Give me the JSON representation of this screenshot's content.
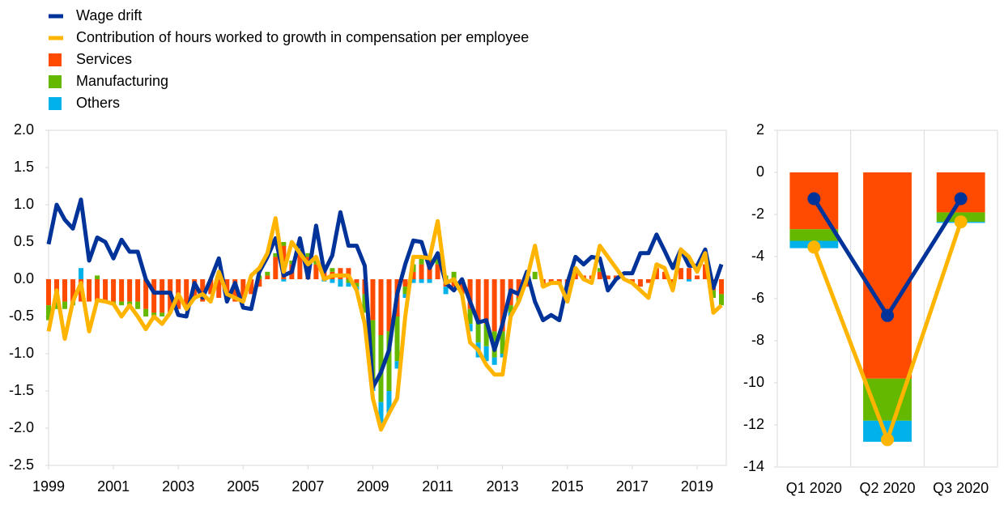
{
  "chart_data": [
    {
      "type": "combo",
      "x": [
        1999,
        1999.25,
        1999.5,
        1999.75,
        2000,
        2000.25,
        2000.5,
        2000.75,
        2001,
        2001.25,
        2001.5,
        2001.75,
        2002,
        2002.25,
        2002.5,
        2002.75,
        2003,
        2003.25,
        2003.5,
        2003.75,
        2004,
        2004.25,
        2004.5,
        2004.75,
        2005,
        2005.25,
        2005.5,
        2005.75,
        2006,
        2006.25,
        2006.5,
        2006.75,
        2007,
        2007.25,
        2007.5,
        2007.75,
        2008,
        2008.25,
        2008.5,
        2008.75,
        2009,
        2009.25,
        2009.5,
        2009.75,
        2010,
        2010.25,
        2010.5,
        2010.75,
        2011,
        2011.25,
        2011.5,
        2011.75,
        2012,
        2012.25,
        2012.5,
        2012.75,
        2013,
        2013.25,
        2013.5,
        2013.75,
        2014,
        2014.25,
        2014.5,
        2014.75,
        2015,
        2015.25,
        2015.5,
        2015.75,
        2016,
        2016.25,
        2016.5,
        2016.75,
        2017,
        2017.25,
        2017.5,
        2017.75,
        2018,
        2018.25,
        2018.5,
        2018.75,
        2019,
        2019.25,
        2019.5,
        2019.75
      ],
      "xlim": [
        1999,
        2019.9
      ],
      "xticks": [
        1999,
        2001,
        2003,
        2005,
        2007,
        2009,
        2011,
        2013,
        2015,
        2017,
        2019
      ],
      "ylim": [
        -2.5,
        2.0
      ],
      "yticks": [
        {
          "value": 2.0,
          "label": "2.0"
        },
        {
          "value": 1.5,
          "label": "1.5"
        },
        {
          "value": 1.0,
          "label": "1.0"
        },
        {
          "value": 0.5,
          "label": "0.5"
        },
        {
          "value": 0,
          "label": "0.0"
        },
        {
          "value": -0.5,
          "label": "-0.5"
        },
        {
          "value": -1.0,
          "label": "-1.0"
        },
        {
          "value": -1.5,
          "label": "-1.5"
        },
        {
          "value": -2.0,
          "label": "-2.0"
        },
        {
          "value": -2.5,
          "label": "-2.5"
        }
      ],
      "series": [
        {
          "name": "Wage drift",
          "kind": "line",
          "color": "#003399",
          "values": [
            0.47,
            1.0,
            0.8,
            0.68,
            1.07,
            0.25,
            0.56,
            0.5,
            0.28,
            0.53,
            0.37,
            0.37,
            0.0,
            -0.18,
            -0.18,
            -0.18,
            -0.48,
            -0.5,
            -0.05,
            -0.25,
            0.0,
            0.28,
            -0.3,
            -0.05,
            -0.38,
            -0.4,
            0.1,
            0.3,
            0.55,
            0.05,
            0.1,
            0.55,
            0.02,
            0.72,
            0.1,
            0.32,
            0.9,
            0.45,
            0.45,
            0.18,
            -1.45,
            -1.25,
            -0.95,
            -0.2,
            0.2,
            0.52,
            0.5,
            0.15,
            0.35,
            -0.05,
            -0.15,
            0.0,
            -0.3,
            -0.58,
            -0.55,
            -0.95,
            -0.6,
            -0.15,
            -0.2,
            0.1,
            -0.3,
            -0.55,
            -0.48,
            -0.55,
            -0.05,
            0.3,
            0.2,
            0.3,
            0.28,
            -0.15,
            0.0,
            0.08,
            0.08,
            0.35,
            0.35,
            0.6,
            0.38,
            0.15,
            0.4,
            0.18,
            0.18,
            0.4,
            -0.12,
            0.2
          ]
        },
        {
          "name": "Contribution of hours worked to growth in compensation per employee",
          "kind": "line",
          "color": "#ffb400",
          "values": [
            -0.7,
            -0.15,
            -0.8,
            -0.3,
            -0.05,
            -0.7,
            -0.28,
            -0.3,
            -0.33,
            -0.5,
            -0.35,
            -0.5,
            -0.67,
            -0.5,
            -0.6,
            -0.45,
            -0.2,
            -0.4,
            -0.25,
            -0.2,
            -0.3,
            0.1,
            -0.2,
            -0.25,
            -0.3,
            0.05,
            0.15,
            0.35,
            0.82,
            0.1,
            0.5,
            0.35,
            0.2,
            0.3,
            0.0,
            0.05,
            0.05,
            0.05,
            -0.15,
            -0.6,
            -1.6,
            -2.02,
            -1.8,
            -1.6,
            -0.5,
            0.3,
            0.3,
            0.28,
            0.78,
            -0.05,
            0.0,
            -0.2,
            -0.85,
            -0.95,
            -1.15,
            -1.28,
            -1.28,
            -0.5,
            -0.3,
            0.0,
            0.45,
            -0.1,
            -0.05,
            -0.05,
            -0.3,
            0.15,
            0.0,
            -0.05,
            0.45,
            0.3,
            0.15,
            0.0,
            -0.05,
            -0.15,
            -0.25,
            0.2,
            0.15,
            -0.15,
            0.4,
            0.3,
            0.1,
            0.35,
            -0.45,
            -0.35
          ]
        },
        {
          "name": "Services",
          "kind": "bar",
          "color": "#ff4b00",
          "values": [
            -0.35,
            -0.3,
            -0.3,
            -0.3,
            -0.3,
            -0.3,
            -0.3,
            -0.3,
            -0.3,
            -0.3,
            -0.3,
            -0.3,
            -0.4,
            -0.45,
            -0.45,
            -0.45,
            -0.4,
            -0.35,
            -0.25,
            -0.3,
            -0.2,
            -0.25,
            -0.25,
            -0.3,
            -0.3,
            -0.2,
            -0.1,
            0.05,
            0.3,
            0.45,
            0.2,
            0.35,
            0.3,
            0.2,
            0.15,
            0.1,
            0.15,
            0.15,
            -0.05,
            -0.2,
            -0.55,
            -0.75,
            -0.7,
            -0.5,
            -0.1,
            0.1,
            0.2,
            0.25,
            0.2,
            -0.1,
            -0.1,
            -0.2,
            -0.4,
            -0.55,
            -0.6,
            -0.7,
            -0.7,
            -0.35,
            -0.25,
            -0.1,
            0.0,
            -0.1,
            -0.05,
            -0.05,
            -0.1,
            0.1,
            0.05,
            0.05,
            0.1,
            0.05,
            0.05,
            0.0,
            -0.05,
            -0.1,
            -0.05,
            0.15,
            0.1,
            -0.05,
            0.15,
            0.15,
            0.05,
            0.2,
            -0.15,
            -0.2
          ]
        },
        {
          "name": "Manufacturing",
          "kind": "bar",
          "color": "#65b800",
          "values": [
            -0.2,
            -0.1,
            -0.1,
            -0.05,
            0.0,
            0.0,
            0.05,
            0.0,
            -0.05,
            -0.05,
            -0.05,
            -0.1,
            -0.1,
            -0.05,
            -0.05,
            0.0,
            0.0,
            0.0,
            0.0,
            0.0,
            0.0,
            0.0,
            0.0,
            0.0,
            0.0,
            0.0,
            0.05,
            0.05,
            0.05,
            0.05,
            0.05,
            0.05,
            0.05,
            0.05,
            0.0,
            0.05,
            0.0,
            -0.05,
            -0.05,
            -0.25,
            -0.9,
            -0.9,
            -0.8,
            -0.6,
            -0.1,
            0.1,
            0.1,
            0.05,
            0.1,
            0.05,
            0.1,
            0.0,
            -0.2,
            -0.3,
            -0.3,
            -0.35,
            -0.3,
            -0.1,
            -0.05,
            0.05,
            0.1,
            0.0,
            0.0,
            0.0,
            0.0,
            0.0,
            0.0,
            0.0,
            0.05,
            0.0,
            0.0,
            0.0,
            0.0,
            0.0,
            0.0,
            0.0,
            0.0,
            0.0,
            0.0,
            0.0,
            0.0,
            0.0,
            -0.1,
            -0.15
          ]
        },
        {
          "name": "Others",
          "kind": "bar",
          "color": "#00b1ea",
          "values": [
            0.0,
            0.0,
            0.0,
            0.0,
            0.15,
            0.0,
            0.0,
            0.0,
            0.0,
            0.0,
            0.0,
            0.0,
            0.0,
            0.0,
            0.0,
            0.0,
            0.0,
            0.0,
            0.0,
            0.0,
            0.0,
            0.0,
            0.0,
            0.0,
            0.0,
            0.0,
            0.0,
            0.0,
            0.0,
            -0.03,
            0.0,
            0.0,
            0.0,
            0.0,
            -0.03,
            -0.05,
            -0.1,
            -0.05,
            -0.05,
            0.0,
            -0.05,
            -0.35,
            -0.3,
            -0.1,
            -0.05,
            -0.05,
            -0.05,
            -0.05,
            0.0,
            -0.1,
            0.0,
            0.0,
            -0.1,
            -0.2,
            -0.2,
            -0.1,
            -0.05,
            -0.05,
            0.0,
            0.0,
            0.0,
            0.0,
            0.0,
            0.0,
            0.0,
            0.0,
            0.0,
            0.0,
            0.0,
            0.0,
            0.0,
            0.0,
            0.0,
            0.0,
            0.0,
            0.0,
            0.0,
            0.0,
            0.0,
            -0.03,
            0.0,
            0.0,
            0.0,
            0.0
          ]
        }
      ]
    },
    {
      "type": "combo",
      "categories": [
        "Q1 2020",
        "Q2 2020",
        "Q3 2020"
      ],
      "ylim": [
        -14,
        2
      ],
      "yticks": [
        2,
        0,
        -2,
        -4,
        -6,
        -8,
        -10,
        -12,
        -14
      ],
      "series": [
        {
          "kind": "bar",
          "color": "#ff4b00",
          "values": [
            -2.7,
            -9.8,
            -1.9
          ]
        },
        {
          "kind": "bar",
          "color": "#65b800",
          "values": [
            -0.55,
            -2.0,
            -0.45
          ]
        },
        {
          "kind": "bar",
          "color": "#00b1ea",
          "values": [
            -0.35,
            -1.0,
            -0.05
          ]
        },
        {
          "kind": "line",
          "color": "#003399",
          "values": [
            -1.25,
            -6.8,
            -1.25
          ]
        },
        {
          "kind": "line",
          "color": "#ffb400",
          "values": [
            -3.55,
            -12.7,
            -2.35
          ]
        }
      ]
    }
  ]
}
